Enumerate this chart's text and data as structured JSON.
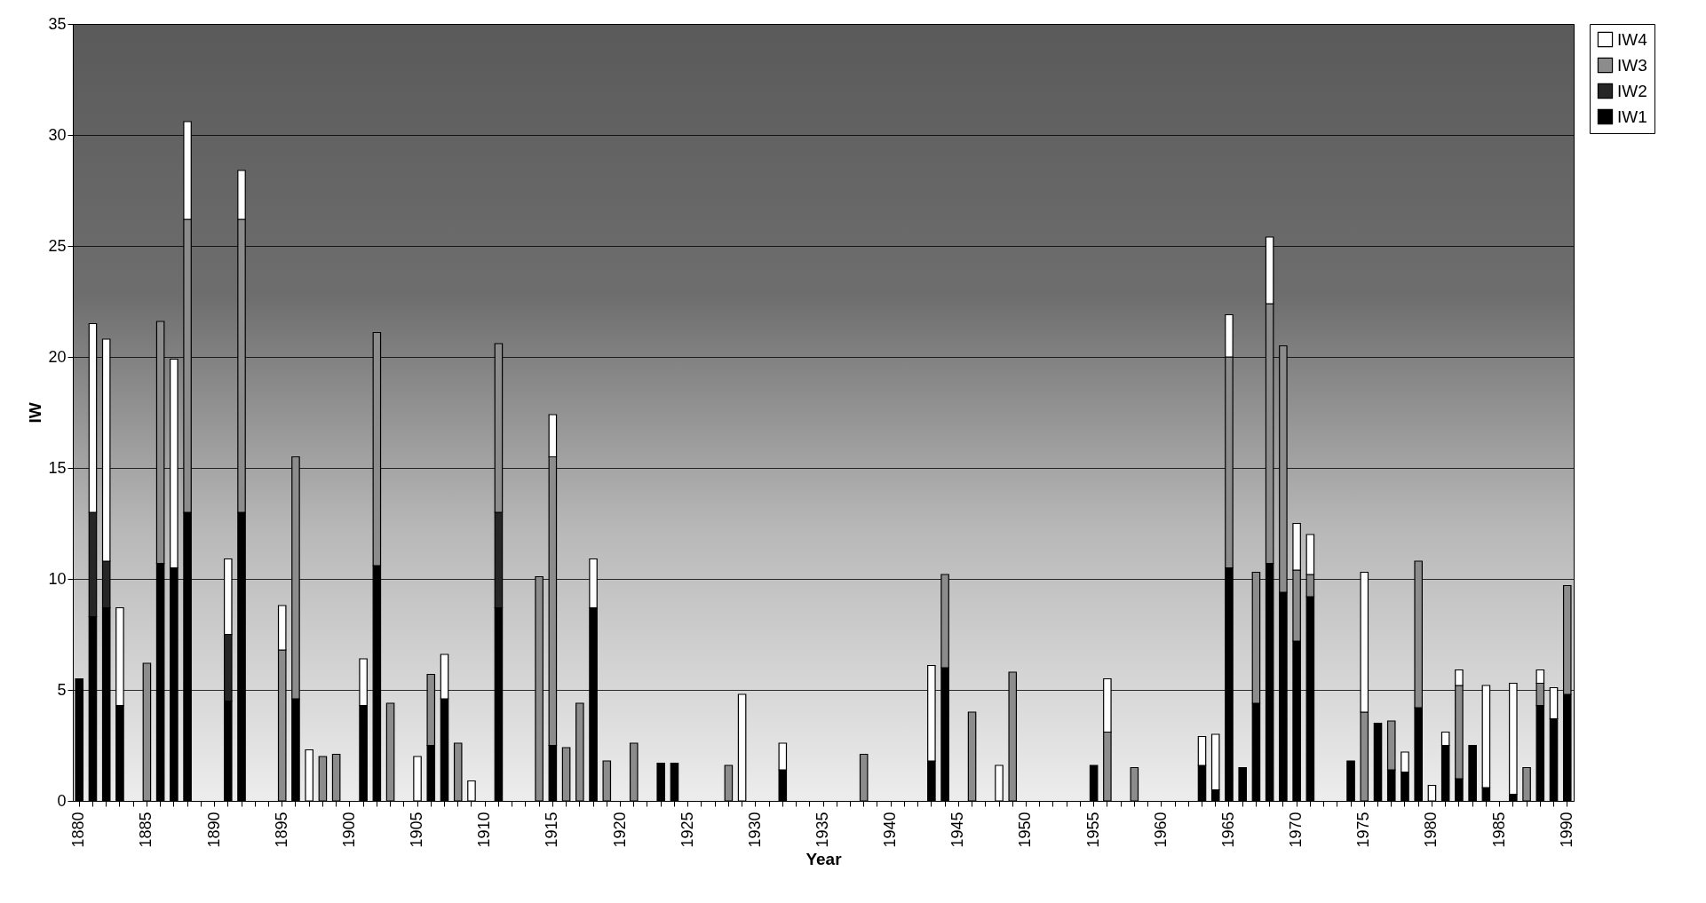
{
  "chart_data": {
    "type": "bar",
    "stacked": true,
    "xlabel": "Year",
    "ylabel": "IW",
    "categories": [
      "1880",
      null,
      null,
      null,
      null,
      "1885",
      null,
      null,
      null,
      null,
      "1890",
      null,
      null,
      null,
      null,
      "1895",
      null,
      null,
      null,
      null,
      "1900",
      null,
      null,
      null,
      null,
      "1905",
      null,
      null,
      null,
      null,
      "1910",
      null,
      null,
      null,
      null,
      "1915",
      null,
      null,
      null,
      null,
      "1920",
      null,
      null,
      null,
      null,
      "1925",
      null,
      null,
      null,
      null,
      "1930",
      null,
      null,
      null,
      null,
      "1935",
      null,
      null,
      null,
      null,
      "1940",
      null,
      null,
      null,
      null,
      "1945",
      null,
      null,
      null,
      null,
      "1950",
      null,
      null,
      null,
      null,
      "1955",
      null,
      null,
      null,
      null,
      "1960",
      null,
      null,
      null,
      null,
      "1965",
      null,
      null,
      null,
      null,
      "1970",
      null,
      null,
      null,
      null,
      "1975",
      null,
      null,
      null,
      null,
      "1980",
      null,
      null,
      null,
      null,
      "1985",
      null,
      null,
      null,
      null,
      "1990"
    ],
    "series": [
      {
        "name": "IW1",
        "color": "#000000",
        "values": [
          5.5,
          8.3,
          8.7,
          4.3,
          null,
          null,
          10.7,
          10.5,
          13,
          null,
          null,
          4.5,
          13,
          null,
          null,
          null,
          4.6,
          null,
          null,
          null,
          null,
          4.3,
          10.6,
          null,
          null,
          null,
          2.5,
          4.6,
          null,
          null,
          null,
          8.7,
          null,
          null,
          null,
          2.5,
          null,
          null,
          8.7,
          null,
          null,
          null,
          null,
          1.7,
          1.7,
          null,
          null,
          null,
          null,
          null,
          null,
          null,
          1.4,
          null,
          null,
          null,
          null,
          null,
          null,
          null,
          null,
          null,
          null,
          1.8,
          6,
          null,
          null,
          null,
          null,
          null,
          null,
          null,
          null,
          null,
          null,
          1.6,
          null,
          null,
          null,
          null,
          null,
          null,
          null,
          1.6,
          0.5,
          10.5,
          1.5,
          4.4,
          10.7,
          9.4,
          7.2,
          9.2,
          null,
          null,
          1.8,
          null,
          3.5,
          1.4,
          1.3,
          4.2,
          null,
          2.5,
          1,
          2.5,
          0.6,
          null,
          0.3,
          null,
          4.3,
          3.7,
          4.8
        ]
      },
      {
        "name": "IW2",
        "color": "#262626",
        "values": [
          null,
          4.7,
          2.1,
          null,
          null,
          null,
          null,
          null,
          null,
          null,
          null,
          3.0,
          null,
          null,
          null,
          null,
          null,
          null,
          null,
          null,
          null,
          null,
          null,
          null,
          null,
          null,
          null,
          null,
          null,
          null,
          null,
          4.3,
          null,
          null,
          null,
          null,
          null,
          null,
          null,
          null,
          null,
          null,
          null,
          null,
          null,
          null,
          null,
          null,
          null,
          null,
          null,
          null,
          null,
          null,
          null,
          null,
          null,
          null,
          null,
          null,
          null,
          null,
          null,
          null,
          null,
          null,
          null,
          null,
          null,
          null,
          null,
          null,
          null,
          null,
          null,
          null,
          null,
          null,
          null,
          null,
          null,
          null,
          null,
          null,
          null,
          null,
          null,
          null,
          null,
          null,
          null,
          null,
          null,
          null,
          null,
          null,
          null,
          null,
          null,
          null,
          null,
          null,
          null,
          null,
          null,
          null,
          null,
          null,
          null,
          null,
          null
        ]
      },
      {
        "name": "IW3",
        "color": "#8c8c8c",
        "values": [
          null,
          null,
          null,
          null,
          null,
          6.2,
          10.9,
          null,
          13.2,
          null,
          null,
          null,
          13.2,
          null,
          null,
          6.8,
          10.9,
          null,
          2.0,
          2.1,
          null,
          null,
          10.5,
          4.4,
          null,
          null,
          3.2,
          null,
          2.6,
          null,
          null,
          7.6,
          null,
          null,
          10.1,
          13,
          2.4,
          4.4,
          null,
          1.8,
          null,
          2.6,
          null,
          null,
          null,
          null,
          null,
          null,
          1.6,
          null,
          null,
          null,
          null,
          null,
          null,
          null,
          null,
          null,
          2.1,
          null,
          null,
          null,
          null,
          null,
          4.2,
          null,
          4.0,
          null,
          null,
          5.8,
          null,
          null,
          null,
          null,
          null,
          null,
          3.1,
          null,
          1.5,
          null,
          null,
          null,
          null,
          null,
          null,
          9.5,
          null,
          5.9,
          11.7,
          11.1,
          3.2,
          1.0,
          null,
          null,
          null,
          4.0,
          null,
          2.2,
          null,
          6.6,
          null,
          null,
          4.2,
          null,
          null,
          null,
          null,
          1.5,
          1.0,
          null,
          4.9
        ]
      },
      {
        "name": "IW4",
        "color": "#ffffff",
        "values": [
          null,
          8.5,
          10,
          4.4,
          null,
          null,
          null,
          9.4,
          4.4,
          null,
          null,
          3.4,
          2.2,
          null,
          null,
          2.0,
          null,
          2.3,
          null,
          null,
          null,
          2.1,
          null,
          null,
          null,
          2.0,
          null,
          2.0,
          null,
          0.9,
          null,
          null,
          null,
          null,
          null,
          1.9,
          null,
          null,
          2.2,
          null,
          null,
          null,
          null,
          null,
          null,
          null,
          null,
          null,
          null,
          4.8,
          null,
          null,
          1.2,
          null,
          null,
          null,
          null,
          null,
          null,
          null,
          null,
          null,
          null,
          4.3,
          null,
          null,
          null,
          null,
          1.6,
          null,
          null,
          null,
          null,
          null,
          null,
          null,
          2.4,
          null,
          null,
          null,
          null,
          null,
          null,
          1.3,
          2.5,
          1.9,
          null,
          null,
          3.0,
          null,
          2.1,
          1.8,
          null,
          null,
          null,
          6.3,
          null,
          null,
          0.9,
          null,
          0.7,
          0.6,
          0.7,
          null,
          4.6,
          null,
          5.0,
          null,
          0.6,
          1.4,
          null
        ]
      }
    ],
    "ylim": [
      0,
      35
    ],
    "yticks": [
      0,
      5,
      10,
      15,
      20,
      25,
      30,
      35
    ],
    "grid": "y",
    "legend": "right"
  }
}
